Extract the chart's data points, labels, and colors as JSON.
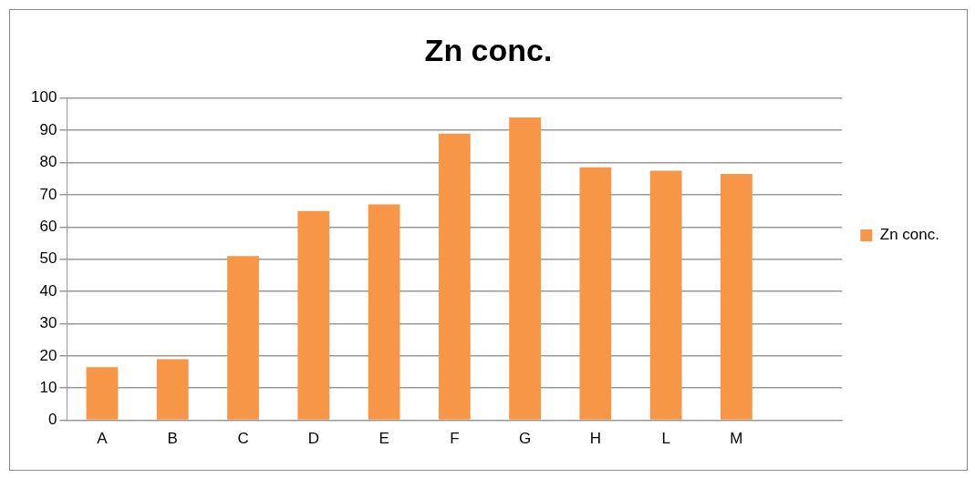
{
  "chart_data": {
    "type": "bar",
    "title": "Zn conc.",
    "categories": [
      "A",
      "B",
      "C",
      "D",
      "E",
      "F",
      "G",
      "H",
      "L",
      "M",
      null
    ],
    "series": [
      {
        "name": "Zn conc.",
        "color": "#f79646",
        "values": [
          16.5,
          19,
          51,
          65,
          67,
          89,
          94,
          78.5,
          77.5,
          76.5,
          null
        ]
      }
    ],
    "ylim": [
      0,
      100
    ],
    "yticks": [
      0,
      10,
      20,
      30,
      40,
      50,
      60,
      70,
      80,
      90,
      100
    ],
    "grid": "y",
    "legend": "right"
  }
}
